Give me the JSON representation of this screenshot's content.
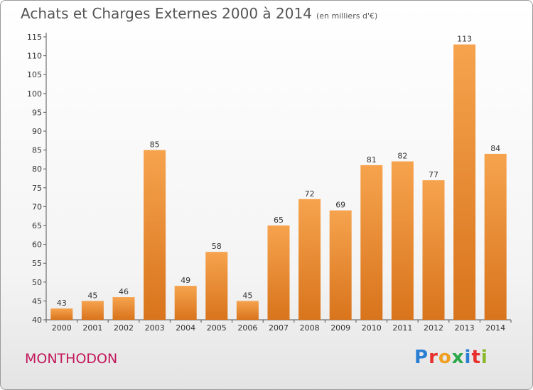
{
  "title": "Achats et Charges Externes 2000 à 2014",
  "unit_note": "(en milliers d'€)",
  "commune": "MONTHODON",
  "logo": {
    "text": "Proxiti",
    "letters": [
      {
        "ch": "P",
        "color": "#2a7fd4"
      },
      {
        "ch": "r",
        "color": "#e8302f"
      },
      {
        "ch": "o",
        "color": "#f0a020"
      },
      {
        "ch": "x",
        "color": "#2aa84a"
      },
      {
        "ch": "i",
        "color": "#2a7fd4"
      },
      {
        "ch": "t",
        "color": "#e8302f"
      },
      {
        "ch": "i",
        "color": "#8ab82a"
      }
    ]
  },
  "colors": {
    "bar_top": "#f6a34e",
    "bar_bottom": "#d8741c",
    "title": "#555555",
    "commune": "#c2185b"
  },
  "chart_data": {
    "type": "bar",
    "categories": [
      "2000",
      "2001",
      "2002",
      "2003",
      "2004",
      "2005",
      "2006",
      "2007",
      "2008",
      "2009",
      "2010",
      "2011",
      "2012",
      "2013",
      "2014"
    ],
    "values": [
      43,
      45,
      46,
      85,
      49,
      58,
      45,
      65,
      72,
      69,
      81,
      82,
      77,
      113,
      84
    ],
    "ylim": [
      40,
      115
    ],
    "yticks": [
      40,
      45,
      50,
      55,
      60,
      65,
      70,
      75,
      80,
      85,
      90,
      95,
      100,
      105,
      110,
      115
    ],
    "grid": false,
    "xlabel": "",
    "ylabel": ""
  }
}
